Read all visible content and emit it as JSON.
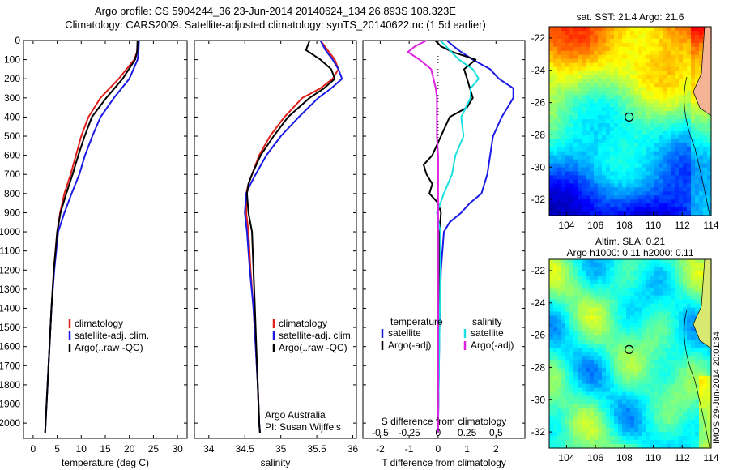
{
  "header": {
    "title_line1": "Argo profile: CS 5904244_36 23-Jun-2014 20140624_134 26.893S 108.323E",
    "title_line2": "Climatology: CARS2009. Satellite-adjusted climatology: synTS_20140622.nc (1.5d earlier)"
  },
  "stamp": "IMOS 29-Jun-2014 20:01:34",
  "colors": {
    "climatology": "#e0201b",
    "satellite": "#1a1ae6",
    "argo": "#000000",
    "sat_diff": "#19e0e0",
    "argo_diff": "#e020e0",
    "marker": "#000000"
  },
  "chart_data": [
    {
      "type": "line",
      "panel": "temperature",
      "xlabel": "temperature (deg C)",
      "xlim": [
        -2,
        32
      ],
      "xticks": [
        0,
        5,
        10,
        15,
        20,
        25,
        30
      ],
      "ylim": [
        2080,
        0
      ],
      "yticks": [
        0,
        100,
        200,
        300,
        400,
        500,
        600,
        700,
        800,
        900,
        1000,
        1100,
        1200,
        1300,
        1400,
        1500,
        1600,
        1700,
        1800,
        1900,
        2000
      ],
      "series": [
        {
          "name": "climatology",
          "color": "#e0201b",
          "depth": [
            0,
            60,
            100,
            200,
            300,
            400,
            500,
            600,
            700,
            800,
            900,
            1000,
            1200,
            1400,
            1600,
            1800,
            2000,
            2050
          ],
          "values": [
            21.8,
            21.6,
            21.0,
            17.8,
            14.0,
            11.5,
            10.0,
            8.9,
            7.8,
            6.5,
            5.6,
            5.0,
            4.3,
            3.8,
            3.4,
            3.0,
            2.6,
            2.5
          ]
        },
        {
          "name": "satellite-adj. clim.",
          "color": "#1a1ae6",
          "depth": [
            0,
            60,
            100,
            200,
            300,
            400,
            500,
            600,
            700,
            800,
            900,
            1000,
            1200,
            1400,
            1600,
            1800,
            2000,
            2050
          ],
          "values": [
            22.0,
            21.9,
            21.7,
            20.0,
            16.8,
            14.0,
            12.3,
            10.8,
            9.6,
            8.0,
            6.5,
            5.2,
            4.4,
            3.8,
            3.4,
            3.0,
            2.6,
            2.5
          ]
        },
        {
          "name": "Argo(..raw -QC)",
          "color": "#000000",
          "depth": [
            0,
            60,
            100,
            200,
            300,
            400,
            500,
            600,
            700,
            800,
            900,
            1000,
            1200,
            1400,
            1600,
            1800,
            2000,
            2050
          ],
          "values": [
            21.7,
            21.6,
            21.2,
            18.6,
            15.2,
            12.2,
            10.7,
            9.4,
            8.2,
            6.9,
            5.7,
            5.0,
            4.3,
            3.8,
            3.4,
            3.0,
            2.6,
            2.5
          ]
        }
      ],
      "legend_position": "lower-middle"
    },
    {
      "type": "line",
      "panel": "salinity",
      "xlabel": "salinity",
      "xlim": [
        33.8,
        36.05
      ],
      "xticks": [
        34,
        34.5,
        35,
        35.5,
        36
      ],
      "ylim": [
        2080,
        0
      ],
      "series": [
        {
          "name": "climatology",
          "color": "#e0201b",
          "depth": [
            0,
            50,
            100,
            150,
            200,
            250,
            300,
            400,
            500,
            600,
            700,
            750,
            800,
            900,
            1000,
            1200,
            1400,
            1600,
            1800,
            2000,
            2050
          ],
          "values": [
            35.55,
            35.65,
            35.75,
            35.8,
            35.72,
            35.55,
            35.3,
            35.05,
            34.85,
            34.7,
            34.6,
            34.55,
            34.52,
            34.52,
            34.55,
            34.58,
            34.62,
            34.65,
            34.68,
            34.7,
            34.71
          ]
        },
        {
          "name": "satellite-adj. clim.",
          "color": "#1a1ae6",
          "depth": [
            0,
            50,
            100,
            150,
            200,
            250,
            300,
            400,
            500,
            600,
            700,
            750,
            800,
            900,
            1000,
            1200,
            1400,
            1600,
            1800,
            2000,
            2050
          ],
          "values": [
            35.55,
            35.62,
            35.72,
            35.8,
            35.85,
            35.7,
            35.52,
            35.25,
            35.0,
            34.8,
            34.65,
            34.58,
            34.52,
            34.5,
            34.53,
            34.57,
            34.62,
            34.65,
            34.68,
            34.7,
            34.71
          ]
        },
        {
          "name": "Argo(..raw -QC)",
          "color": "#000000",
          "depth": [
            0,
            50,
            100,
            150,
            200,
            250,
            300,
            400,
            500,
            600,
            700,
            750,
            800,
            900,
            1000,
            1200,
            1400,
            1600,
            1800,
            2000,
            2050
          ],
          "values": [
            35.4,
            35.35,
            35.55,
            35.7,
            35.75,
            35.6,
            35.4,
            35.1,
            34.9,
            34.72,
            34.6,
            34.55,
            34.53,
            34.55,
            34.6,
            34.62,
            34.64,
            34.66,
            34.68,
            34.7,
            34.71
          ]
        }
      ],
      "legend_position": "lower-middle",
      "annotation": [
        "Argo Australia",
        "PI: Susan Wijffels"
      ]
    },
    {
      "type": "line",
      "panel": "difference",
      "xlabel": "T difference from climatology",
      "xlim": [
        -2.6,
        3.0
      ],
      "xticks": [
        -2,
        -1,
        0,
        1,
        2
      ],
      "top_label": "S difference from climatology",
      "top_ticks": [
        -0.5,
        -0.25,
        0,
        0.25,
        0.5
      ],
      "top_tick_labels": [
        "-0.5",
        "-0.25",
        "0",
        "0.25",
        "0.5"
      ],
      "ylim": [
        2080,
        0
      ],
      "legend": {
        "temperature": "temperature",
        "salinity": "salinity",
        "t_sat": "satellite",
        "t_argo": "Argo(-adj)",
        "s_sat": "satellite",
        "s_argo": "Argo(-adj)"
      },
      "series": [
        {
          "name": "T satellite",
          "color": "#1a1ae6",
          "depth": [
            0,
            50,
            100,
            150,
            200,
            250,
            300,
            350,
            400,
            500,
            600,
            700,
            800,
            850,
            900,
            950,
            1000,
            1200,
            1500,
            2000,
            2050
          ],
          "values": [
            0.3,
            0.7,
            1.2,
            1.8,
            2.1,
            2.6,
            2.6,
            2.4,
            2.2,
            1.9,
            1.8,
            1.7,
            1.5,
            1.1,
            0.8,
            0.4,
            0.2,
            0.1,
            0.05,
            0.0,
            0.0
          ]
        },
        {
          "name": "T Argo(-adj)",
          "color": "#000000",
          "depth": [
            0,
            30,
            60,
            100,
            150,
            200,
            300,
            350,
            400,
            500,
            600,
            650,
            700,
            750,
            800,
            850,
            900,
            1000,
            1200,
            2000,
            2050
          ],
          "values": [
            -0.1,
            0.1,
            0.5,
            1.3,
            0.9,
            1.0,
            1.2,
            1.0,
            0.4,
            0.1,
            -0.2,
            -0.5,
            -0.4,
            -0.2,
            -0.3,
            0.0,
            0.1,
            0.05,
            0.05,
            0.0,
            0.0
          ]
        },
        {
          "name": "S satellite",
          "color": "#19e0e0",
          "depth": [
            0,
            50,
            100,
            150,
            200,
            250,
            300,
            400,
            500,
            600,
            700,
            800,
            900,
            1000,
            1200,
            2000,
            2050
          ],
          "values": [
            0.02,
            0.1,
            0.18,
            0.3,
            0.35,
            0.28,
            0.28,
            0.2,
            0.22,
            0.15,
            0.12,
            0.05,
            -0.01,
            0.02,
            0.02,
            0.0,
            0.0
          ]
        },
        {
          "name": "S Argo(-adj)",
          "color": "#e020e0",
          "depth": [
            0,
            30,
            60,
            100,
            150,
            200,
            250,
            300,
            400,
            500,
            600,
            700,
            800,
            900,
            1000,
            1500,
            2000,
            2050
          ],
          "values": [
            -0.1,
            -0.2,
            -0.26,
            -0.16,
            -0.06,
            -0.04,
            -0.02,
            -0.01,
            -0.01,
            -0.01,
            0.0,
            0.0,
            0.0,
            0.0,
            0.0,
            0.0,
            0.0,
            0.0
          ]
        }
      ]
    },
    {
      "type": "heatmap",
      "panel": "sst_map",
      "title": "sat. SST: 21.4  Argo: 21.6",
      "xlim": [
        102.8,
        114
      ],
      "ylim": [
        -33,
        -21.3
      ],
      "xticks": [
        104,
        106,
        108,
        110,
        112,
        114
      ],
      "yticks": [
        -22,
        -24,
        -26,
        -28,
        -30,
        -32
      ],
      "profile_location": [
        108.323,
        -26.893
      ]
    },
    {
      "type": "heatmap",
      "panel": "sla_map",
      "title_line1": "Altim. SLA: 0.21",
      "title_line2": "Argo h1000: 0.11 h2000: 0.11",
      "xlim": [
        102.8,
        114
      ],
      "ylim": [
        -33,
        -21.3
      ],
      "xticks": [
        104,
        106,
        108,
        110,
        112,
        114
      ],
      "yticks": [
        -22,
        -24,
        -26,
        -28,
        -30,
        -32
      ],
      "profile_location": [
        108.323,
        -26.893
      ]
    }
  ]
}
